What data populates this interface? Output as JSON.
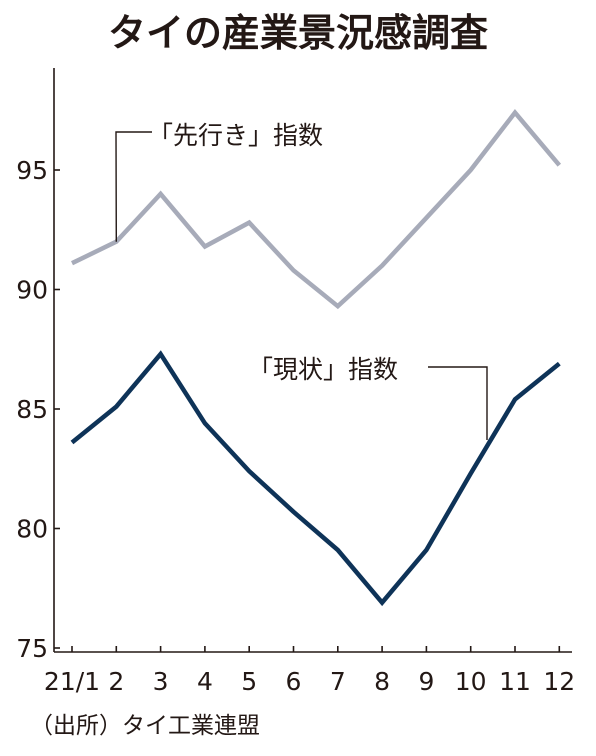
{
  "chart_data": {
    "type": "line",
    "title": "タイの産業景況感調査",
    "source": "（出所）タイ工業連盟",
    "categories": [
      "21/1",
      "2",
      "3",
      "4",
      "5",
      "6",
      "7",
      "8",
      "9",
      "10",
      "11",
      "12"
    ],
    "series": [
      {
        "name": "「先行き」指数",
        "color": "#a7abb9",
        "values": [
          91.1,
          92.0,
          94.0,
          91.8,
          92.8,
          90.8,
          89.3,
          91.0,
          93.0,
          95.0,
          97.4,
          95.2
        ]
      },
      {
        "name": "「現状」指数",
        "color": "#0e3358",
        "values": [
          83.6,
          85.1,
          87.3,
          84.4,
          82.4,
          80.7,
          79.1,
          76.9,
          79.1,
          82.3,
          85.4,
          86.9
        ]
      }
    ],
    "y_ticks": [
      75,
      80,
      85,
      90,
      95
    ],
    "ylim": [
      75,
      98.3
    ],
    "grid": false,
    "legend": "inline labels with leader lines"
  }
}
